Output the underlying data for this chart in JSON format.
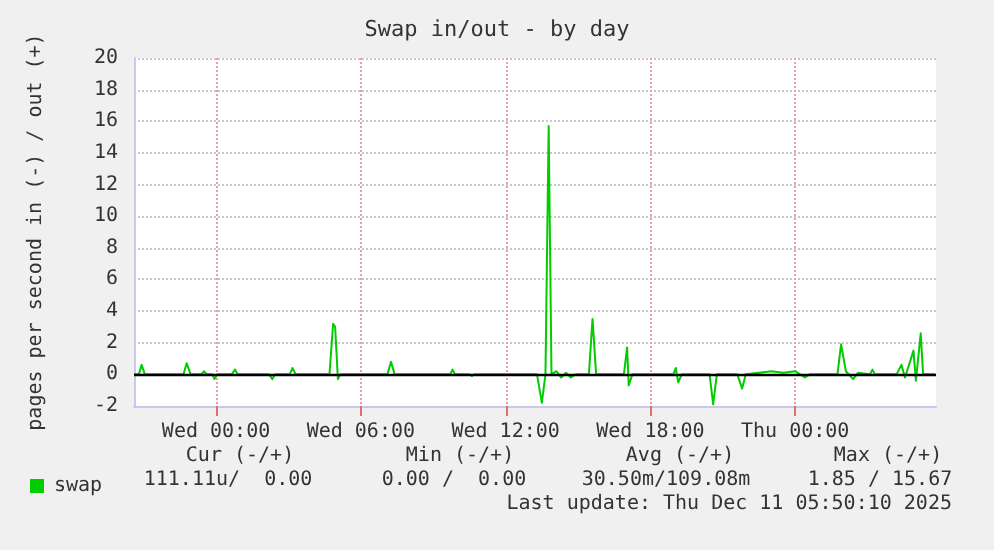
{
  "chart_data": {
    "type": "line",
    "title": "Swap in/out - by day",
    "ylabel": "pages per second in (-) / out (+)",
    "x": [
      "2025-12-09T20:36",
      "2025-12-09T20:48",
      "2025-12-09T20:55",
      "2025-12-09T21:03",
      "2025-12-09T22:39",
      "2025-12-09T22:47",
      "2025-12-09T22:57",
      "2025-12-09T23:24",
      "2025-12-09T23:30",
      "2025-12-09T23:36",
      "2025-12-09T23:51",
      "2025-12-09T23:56",
      "2025-12-10T00:03",
      "2025-12-10T00:39",
      "2025-12-10T00:47",
      "2025-12-10T00:54",
      "2025-12-10T02:12",
      "2025-12-10T02:20",
      "2025-12-10T02:27",
      "2025-12-10T03:03",
      "2025-12-10T03:10",
      "2025-12-10T03:18",
      "2025-12-10T04:42",
      "2025-12-10T04:51",
      "2025-12-10T04:56",
      "2025-12-10T05:03",
      "2025-12-10T05:09",
      "2025-12-10T07:06",
      "2025-12-10T07:15",
      "2025-12-10T07:24",
      "2025-12-10T09:42",
      "2025-12-10T09:48",
      "2025-12-10T09:54",
      "2025-12-10T10:30",
      "2025-12-10T10:36",
      "2025-12-10T10:42",
      "2025-12-10T13:18",
      "2025-12-10T13:30",
      "2025-12-10T13:39",
      "2025-12-10T13:47",
      "2025-12-10T13:54",
      "2025-12-10T14:06",
      "2025-12-10T14:18",
      "2025-12-10T14:30",
      "2025-12-10T14:42",
      "2025-12-10T14:54",
      "2025-12-10T15:27",
      "2025-12-10T15:36",
      "2025-12-10T15:45",
      "2025-12-10T16:54",
      "2025-12-10T17:02",
      "2025-12-10T17:06",
      "2025-12-10T17:15",
      "2025-12-10T18:57",
      "2025-12-10T19:03",
      "2025-12-10T19:09",
      "2025-12-10T19:18",
      "2025-12-10T20:27",
      "2025-12-10T20:36",
      "2025-12-10T20:45",
      "2025-12-10T21:36",
      "2025-12-10T21:48",
      "2025-12-10T21:57",
      "2025-12-10T22:30",
      "2025-12-10T23:00",
      "2025-12-10T23:30",
      "2025-12-11T00:00",
      "2025-12-11T00:24",
      "2025-12-11T00:36",
      "2025-12-11T01:45",
      "2025-12-11T01:54",
      "2025-12-11T02:06",
      "2025-12-11T02:24",
      "2025-12-11T02:36",
      "2025-12-11T03:06",
      "2025-12-11T03:12",
      "2025-12-11T03:18",
      "2025-12-11T04:12",
      "2025-12-11T04:24",
      "2025-12-11T04:33",
      "2025-12-11T04:54",
      "2025-12-11T05:00",
      "2025-12-11T05:12",
      "2025-12-11T05:18",
      "2025-12-11T05:48"
    ],
    "series": [
      {
        "name": "swap",
        "color": "#00cc00",
        "values": [
          0,
          0,
          0.6,
          0,
          0,
          0.7,
          0,
          0,
          0.2,
          0,
          0,
          -0.3,
          0,
          0,
          0.3,
          0,
          0,
          -0.3,
          0,
          0,
          0.4,
          0,
          0,
          3.2,
          3.0,
          -0.3,
          0,
          0,
          0.8,
          0,
          0,
          0.3,
          0,
          0,
          -0.1,
          0,
          0,
          -1.8,
          0,
          15.7,
          0,
          0.2,
          -0.2,
          0.1,
          -0.2,
          0,
          0,
          3.5,
          0,
          0,
          1.7,
          -0.7,
          0,
          0,
          0.4,
          -0.5,
          0,
          0,
          -1.9,
          0,
          0,
          -0.9,
          0,
          0.1,
          0.2,
          0.1,
          0.2,
          -0.2,
          0,
          0,
          1.9,
          0.2,
          -0.3,
          0.1,
          0,
          0.3,
          0,
          0,
          0.6,
          -0.2,
          1.5,
          -0.4,
          2.6,
          0,
          0
        ]
      }
    ],
    "xlim": [
      "2025-12-09T20:36",
      "2025-12-11T05:50"
    ],
    "xticks": [
      {
        "value": "2025-12-10T00:00",
        "label": "Wed 00:00"
      },
      {
        "value": "2025-12-10T06:00",
        "label": "Wed 06:00"
      },
      {
        "value": "2025-12-10T12:00",
        "label": "Wed 12:00"
      },
      {
        "value": "2025-12-10T18:00",
        "label": "Wed 18:00"
      },
      {
        "value": "2025-12-11T00:00",
        "label": "Thu 00:00"
      }
    ],
    "ylim": [
      -2,
      20
    ],
    "yticks": [
      -2,
      0,
      2,
      4,
      6,
      8,
      10,
      12,
      14,
      16,
      18,
      20
    ],
    "grid": true,
    "legend": "bottom left",
    "marker": "none",
    "line_style": "solid",
    "ref_lines": [
      {
        "axis": "y",
        "value": 0,
        "color": "#000000"
      }
    ],
    "annotations": [
      "Cur (-/+)",
      "Min (-/+)",
      "Avg (-/+)",
      "Max (-/+)",
      "111.11u/  0.00",
      "0.00 /  0.00",
      "30.50m/109.08m",
      "1.85 / 15.67",
      "Last update: Thu Dec 11 05:50:10 2025"
    ]
  }
}
